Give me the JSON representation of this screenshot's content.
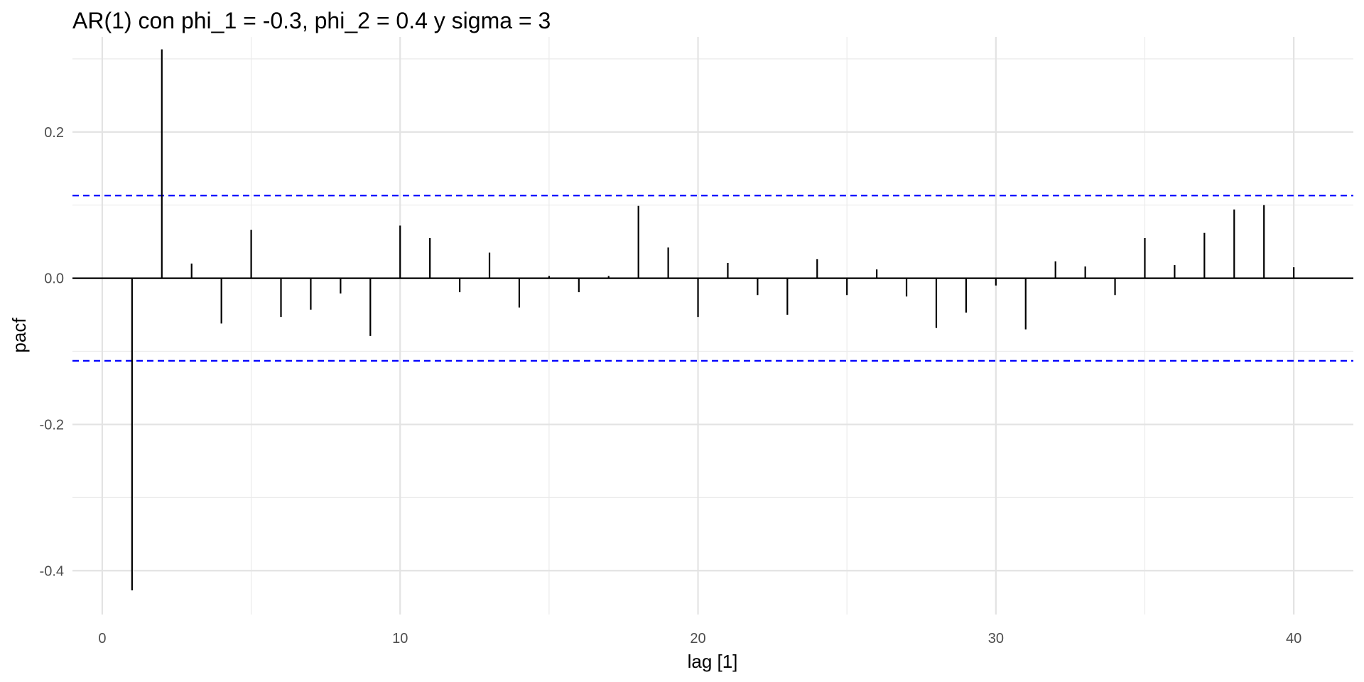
{
  "chart_data": {
    "type": "bar",
    "title": "AR(1) con phi_1 = -0.3, phi_2 = 0.4 y sigma = 3",
    "xlabel": "lag [1]",
    "ylabel": "pacf",
    "xlim": [
      -1,
      42
    ],
    "ylim": [
      -0.46,
      0.33
    ],
    "x_ticks": [
      0,
      10,
      20,
      30,
      40
    ],
    "x_tick_labels": [
      "0",
      "10",
      "20",
      "30",
      "40"
    ],
    "y_ticks": [
      -0.4,
      -0.2,
      0.0,
      0.2
    ],
    "y_tick_labels": [
      "-0.4",
      "-0.2",
      "0.0",
      "0.2"
    ],
    "grid": true,
    "confidence_bounds": [
      0.113,
      -0.113
    ],
    "confidence_color": "#0000ff",
    "bar_color": "#000000",
    "x": [
      1,
      2,
      3,
      4,
      5,
      6,
      7,
      8,
      9,
      10,
      11,
      12,
      13,
      14,
      15,
      16,
      17,
      18,
      19,
      20,
      21,
      22,
      23,
      24,
      25,
      26,
      27,
      28,
      29,
      30,
      31,
      32,
      33,
      34,
      35,
      36,
      37,
      38,
      39,
      40
    ],
    "values": [
      -0.427,
      0.313,
      0.02,
      -0.062,
      0.066,
      -0.053,
      -0.043,
      -0.021,
      -0.079,
      0.072,
      0.055,
      -0.019,
      0.035,
      -0.04,
      0.003,
      -0.019,
      0.003,
      0.099,
      0.042,
      -0.053,
      0.021,
      -0.023,
      -0.05,
      0.026,
      -0.023,
      0.012,
      -0.025,
      -0.068,
      -0.047,
      -0.01,
      -0.07,
      0.023,
      0.016,
      -0.023,
      0.055,
      0.018,
      0.062,
      0.094,
      0.1,
      0.015
    ]
  }
}
